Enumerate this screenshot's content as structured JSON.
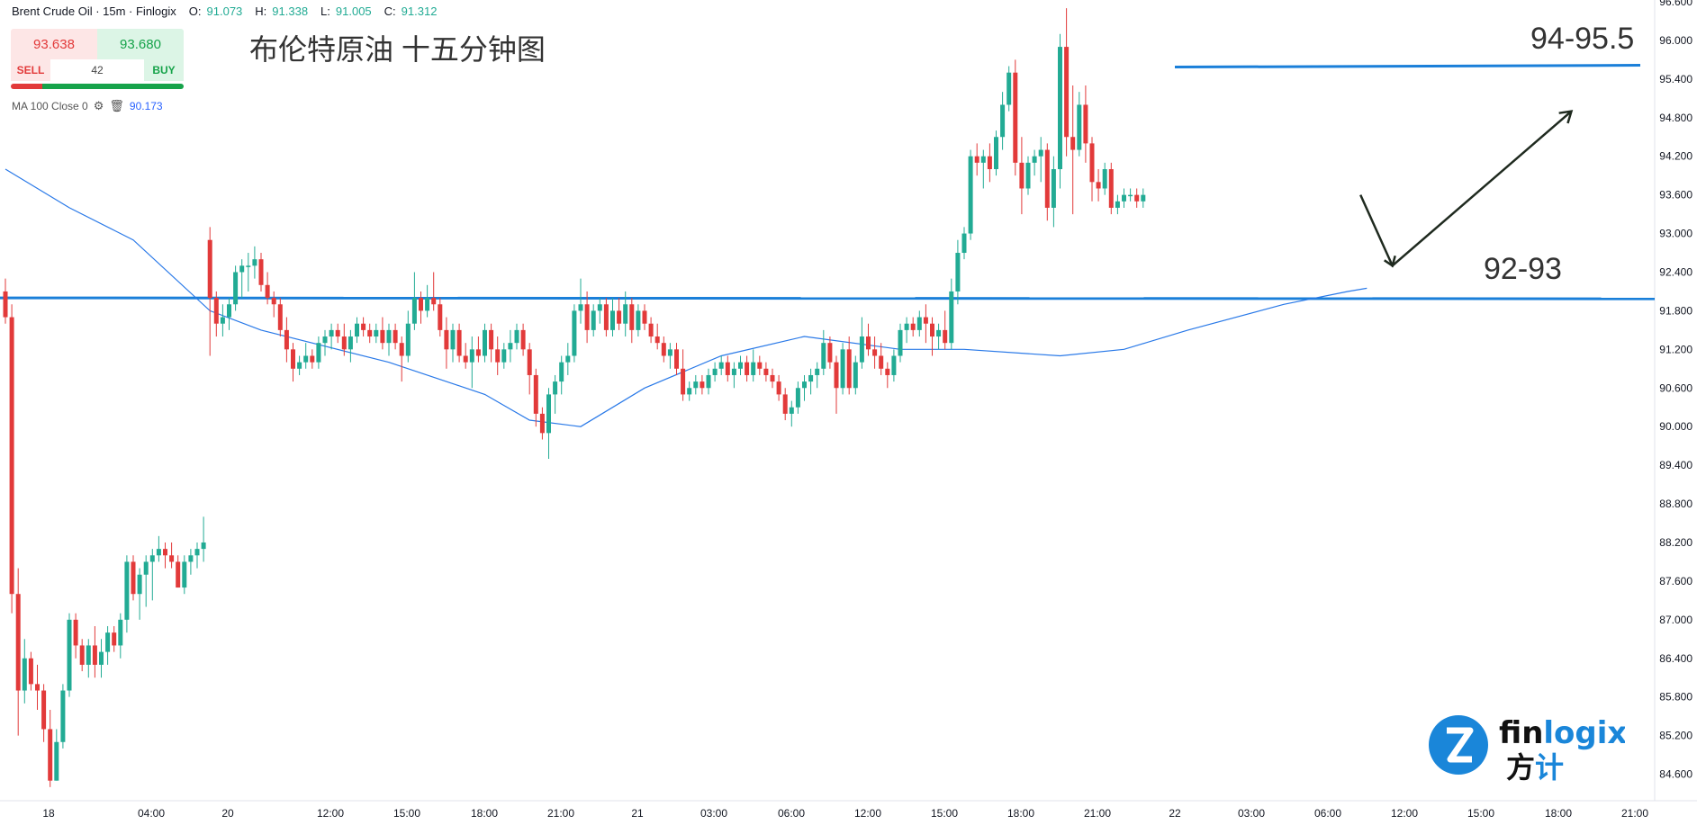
{
  "header": {
    "symbol": "Brent Crude Oil · 15m · Finlogix",
    "o_label": "O:",
    "o_value": "91.073",
    "h_label": "H:",
    "h_value": "91.338",
    "l_label": "L:",
    "l_value": "91.005",
    "c_label": "C:",
    "c_value": "91.312"
  },
  "trade_panel": {
    "sell_price": "93.638",
    "buy_price": "93.680",
    "sell_label": "SELL",
    "buy_label": "BUY",
    "spread": "42"
  },
  "indicator": {
    "label": "MA 100 Close 0",
    "value": "90.173",
    "icons": [
      "gear-icon",
      "trash-icon"
    ]
  },
  "annotation_title": "布伦特原油 十五分钟图",
  "zones": {
    "upper_label": "94-95.5",
    "lower_label": "92-93"
  },
  "logo": {
    "brand": "finlogix",
    "brand_cn": "方计",
    "brand_accent": "#1a86d9"
  },
  "colors": {
    "up": "#22ab94",
    "down": "#e23a3a",
    "ma": "#2979e8",
    "level": "#1a7fd9"
  },
  "chart_data": {
    "type": "candlestick",
    "y_ticks": [
      "96.600",
      "96.000",
      "95.400",
      "94.800",
      "94.200",
      "93.600",
      "93.000",
      "92.400",
      "91.800",
      "91.200",
      "90.600",
      "90.000",
      "89.400",
      "88.800",
      "88.200",
      "87.600",
      "87.000",
      "86.400",
      "85.800",
      "85.200",
      "84.600"
    ],
    "ylim": [
      84.3,
      96.6
    ],
    "x_ticks": [
      "18",
      "04:00",
      "20",
      "12:00",
      "15:00",
      "18:00",
      "21:00",
      "21",
      "03:00",
      "06:00",
      "12:00",
      "15:00",
      "18:00",
      "21:00",
      "22",
      "03:00",
      "06:00",
      "12:00",
      "15:00",
      "18:00",
      "21:00"
    ],
    "horizontal_levels": [
      95.6,
      92.0
    ],
    "ohlc": [
      [
        92.1,
        92.3,
        91.6,
        91.7
      ],
      [
        91.7,
        91.9,
        87.1,
        87.4
      ],
      [
        87.4,
        87.8,
        85.2,
        85.9
      ],
      [
        85.9,
        86.7,
        85.7,
        86.4
      ],
      [
        86.4,
        86.5,
        85.9,
        86.0
      ],
      [
        86.0,
        86.3,
        85.6,
        85.9
      ],
      [
        85.9,
        86.0,
        85.1,
        85.3
      ],
      [
        85.3,
        85.6,
        84.4,
        84.5
      ],
      [
        84.5,
        85.3,
        84.5,
        85.1
      ],
      [
        85.1,
        86.0,
        85.0,
        85.9
      ],
      [
        85.9,
        87.1,
        85.8,
        87.0
      ],
      [
        87.0,
        87.1,
        86.4,
        86.6
      ],
      [
        86.6,
        86.7,
        86.2,
        86.3
      ],
      [
        86.3,
        86.7,
        86.1,
        86.6
      ],
      [
        86.6,
        86.9,
        86.1,
        86.3
      ],
      [
        86.3,
        86.7,
        86.1,
        86.5
      ],
      [
        86.5,
        86.9,
        86.3,
        86.8
      ],
      [
        86.8,
        86.9,
        86.5,
        86.6
      ],
      [
        86.6,
        87.1,
        86.4,
        87.0
      ],
      [
        87.0,
        88.0,
        86.8,
        87.9
      ],
      [
        87.9,
        88.0,
        87.3,
        87.4
      ],
      [
        87.4,
        87.8,
        87.0,
        87.7
      ],
      [
        87.7,
        88.0,
        87.2,
        87.9
      ],
      [
        87.9,
        88.1,
        87.3,
        88.0
      ],
      [
        88.0,
        88.3,
        87.9,
        88.1
      ],
      [
        88.1,
        88.2,
        87.8,
        88.0
      ],
      [
        88.0,
        88.2,
        87.8,
        87.9
      ],
      [
        87.9,
        88.0,
        87.5,
        87.5
      ],
      [
        87.5,
        88.0,
        87.4,
        87.9
      ],
      [
        87.9,
        88.1,
        87.7,
        88.0
      ],
      [
        88.0,
        88.2,
        87.8,
        88.1
      ],
      [
        88.1,
        88.6,
        87.9,
        88.2
      ],
      [
        92.9,
        93.1,
        91.1,
        92.0
      ],
      [
        92.0,
        92.1,
        91.4,
        91.6
      ],
      [
        91.6,
        91.9,
        91.4,
        91.7
      ],
      [
        91.7,
        92.0,
        91.5,
        91.9
      ],
      [
        91.9,
        92.5,
        91.8,
        92.4
      ],
      [
        92.4,
        92.6,
        92.0,
        92.5
      ],
      [
        92.5,
        92.7,
        92.1,
        92.5
      ],
      [
        92.5,
        92.8,
        92.3,
        92.6
      ],
      [
        92.6,
        92.7,
        92.1,
        92.2
      ],
      [
        92.2,
        92.4,
        91.9,
        92.0
      ],
      [
        92.0,
        92.1,
        91.7,
        91.9
      ],
      [
        91.9,
        92.0,
        91.4,
        91.5
      ],
      [
        91.5,
        91.7,
        91.0,
        91.2
      ],
      [
        91.2,
        91.3,
        90.7,
        90.9
      ],
      [
        90.9,
        91.1,
        90.8,
        91.0
      ],
      [
        91.0,
        91.3,
        90.9,
        91.1
      ],
      [
        91.1,
        91.2,
        90.9,
        91.0
      ],
      [
        91.0,
        91.4,
        90.9,
        91.3
      ],
      [
        91.3,
        91.5,
        91.1,
        91.4
      ],
      [
        91.4,
        91.6,
        91.2,
        91.5
      ],
      [
        91.5,
        91.6,
        91.3,
        91.4
      ],
      [
        91.4,
        91.6,
        91.1,
        91.2
      ],
      [
        91.2,
        91.5,
        91.0,
        91.4
      ],
      [
        91.4,
        91.7,
        91.3,
        91.6
      ],
      [
        91.6,
        91.7,
        91.4,
        91.5
      ],
      [
        91.5,
        91.6,
        91.3,
        91.4
      ],
      [
        91.4,
        91.6,
        91.3,
        91.5
      ],
      [
        91.5,
        91.7,
        91.2,
        91.3
      ],
      [
        91.3,
        91.6,
        91.1,
        91.5
      ],
      [
        91.5,
        91.6,
        91.2,
        91.3
      ],
      [
        91.3,
        91.4,
        90.7,
        91.1
      ],
      [
        91.1,
        91.8,
        91.0,
        91.6
      ],
      [
        91.6,
        92.4,
        91.5,
        92.0
      ],
      [
        92.0,
        92.1,
        91.6,
        91.8
      ],
      [
        91.8,
        92.2,
        91.7,
        92.0
      ],
      [
        92.0,
        92.4,
        91.8,
        91.9
      ],
      [
        91.9,
        92.0,
        91.4,
        91.5
      ],
      [
        91.5,
        91.7,
        90.9,
        91.2
      ],
      [
        91.2,
        91.6,
        91.0,
        91.5
      ],
      [
        91.5,
        91.6,
        91.0,
        91.1
      ],
      [
        91.1,
        91.3,
        90.9,
        91.0
      ],
      [
        91.0,
        91.4,
        90.6,
        91.2
      ],
      [
        91.2,
        91.4,
        91.0,
        91.1
      ],
      [
        91.1,
        91.6,
        91.0,
        91.5
      ],
      [
        91.5,
        91.6,
        91.0,
        91.2
      ],
      [
        91.2,
        91.4,
        90.8,
        91.0
      ],
      [
        91.0,
        91.3,
        90.9,
        91.2
      ],
      [
        91.2,
        91.5,
        91.0,
        91.3
      ],
      [
        91.3,
        91.6,
        91.2,
        91.5
      ],
      [
        91.5,
        91.6,
        91.1,
        91.2
      ],
      [
        91.2,
        91.3,
        90.5,
        90.8
      ],
      [
        90.8,
        90.9,
        90.0,
        90.2
      ],
      [
        90.2,
        90.3,
        89.8,
        89.9
      ],
      [
        89.9,
        90.6,
        89.5,
        90.5
      ],
      [
        90.5,
        90.8,
        90.2,
        90.7
      ],
      [
        90.7,
        91.1,
        90.5,
        91.0
      ],
      [
        91.0,
        91.3,
        90.8,
        91.1
      ],
      [
        91.1,
        91.9,
        91.0,
        91.8
      ],
      [
        91.8,
        92.3,
        91.6,
        91.9
      ],
      [
        91.9,
        92.1,
        91.3,
        91.5
      ],
      [
        91.5,
        91.9,
        91.4,
        91.8
      ],
      [
        91.8,
        92.0,
        91.6,
        91.9
      ],
      [
        91.9,
        92.0,
        91.4,
        91.5
      ],
      [
        91.5,
        92.0,
        91.4,
        91.8
      ],
      [
        91.8,
        92.0,
        91.5,
        91.6
      ],
      [
        91.6,
        92.1,
        91.4,
        91.9
      ],
      [
        91.9,
        92.0,
        91.3,
        91.5
      ],
      [
        91.5,
        91.9,
        91.4,
        91.8
      ],
      [
        91.8,
        91.9,
        91.5,
        91.6
      ],
      [
        91.6,
        91.7,
        91.3,
        91.4
      ],
      [
        91.4,
        91.6,
        91.2,
        91.3
      ],
      [
        91.3,
        91.4,
        91.0,
        91.1
      ],
      [
        91.1,
        91.3,
        90.9,
        91.2
      ],
      [
        91.2,
        91.3,
        90.8,
        90.9
      ],
      [
        90.9,
        91.2,
        90.4,
        90.5
      ],
      [
        90.5,
        90.7,
        90.4,
        90.6
      ],
      [
        90.6,
        90.8,
        90.5,
        90.7
      ],
      [
        90.7,
        90.8,
        90.5,
        90.6
      ],
      [
        90.6,
        90.9,
        90.5,
        90.8
      ],
      [
        90.8,
        91.0,
        90.7,
        90.9
      ],
      [
        90.9,
        91.1,
        90.8,
        91.0
      ],
      [
        91.0,
        91.1,
        90.7,
        90.8
      ],
      [
        90.8,
        91.0,
        90.6,
        90.9
      ],
      [
        90.9,
        91.1,
        90.8,
        91.0
      ],
      [
        91.0,
        91.1,
        90.7,
        90.8
      ],
      [
        90.8,
        91.2,
        90.7,
        91.0
      ],
      [
        91.0,
        91.1,
        90.8,
        90.9
      ],
      [
        90.9,
        91.0,
        90.7,
        90.8
      ],
      [
        90.8,
        90.9,
        90.6,
        90.7
      ],
      [
        90.7,
        90.8,
        90.4,
        90.5
      ],
      [
        90.5,
        90.6,
        90.1,
        90.2
      ],
      [
        90.2,
        90.4,
        90.0,
        90.3
      ],
      [
        90.3,
        90.7,
        90.2,
        90.6
      ],
      [
        90.6,
        90.8,
        90.4,
        90.7
      ],
      [
        90.7,
        90.9,
        90.5,
        90.8
      ],
      [
        90.8,
        91.0,
        90.6,
        90.9
      ],
      [
        90.9,
        91.5,
        90.8,
        91.3
      ],
      [
        91.3,
        91.4,
        90.9,
        91.0
      ],
      [
        91.0,
        91.1,
        90.2,
        90.6
      ],
      [
        90.6,
        91.3,
        90.5,
        91.2
      ],
      [
        91.2,
        91.4,
        90.5,
        90.6
      ],
      [
        90.6,
        91.1,
        90.5,
        91.0
      ],
      [
        91.0,
        91.7,
        90.9,
        91.4
      ],
      [
        91.4,
        91.6,
        91.1,
        91.2
      ],
      [
        91.2,
        91.4,
        90.9,
        91.1
      ],
      [
        91.1,
        91.3,
        90.8,
        90.9
      ],
      [
        90.9,
        91.0,
        90.6,
        90.8
      ],
      [
        90.8,
        91.2,
        90.7,
        91.1
      ],
      [
        91.1,
        91.6,
        91.0,
        91.5
      ],
      [
        91.5,
        91.7,
        91.3,
        91.6
      ],
      [
        91.6,
        91.7,
        91.4,
        91.5
      ],
      [
        91.5,
        91.8,
        91.4,
        91.7
      ],
      [
        91.7,
        91.9,
        91.3,
        91.6
      ],
      [
        91.6,
        91.7,
        91.1,
        91.4
      ],
      [
        91.4,
        91.6,
        91.2,
        91.5
      ],
      [
        91.5,
        91.8,
        91.2,
        91.3
      ],
      [
        91.3,
        92.3,
        91.2,
        92.1
      ],
      [
        92.1,
        92.9,
        91.9,
        92.7
      ],
      [
        92.7,
        93.1,
        92.6,
        93.0
      ],
      [
        93.0,
        94.3,
        92.9,
        94.2
      ],
      [
        94.2,
        94.4,
        93.9,
        94.1
      ],
      [
        94.1,
        94.3,
        93.7,
        94.2
      ],
      [
        94.2,
        94.4,
        93.8,
        94.0
      ],
      [
        94.0,
        94.6,
        93.9,
        94.5
      ],
      [
        94.5,
        95.2,
        94.3,
        95.0
      ],
      [
        95.0,
        95.6,
        94.9,
        95.5
      ],
      [
        95.5,
        95.7,
        93.9,
        94.1
      ],
      [
        94.1,
        94.5,
        93.3,
        93.7
      ],
      [
        93.7,
        94.2,
        93.6,
        94.1
      ],
      [
        94.1,
        94.3,
        93.9,
        94.2
      ],
      [
        94.2,
        94.5,
        93.8,
        94.3
      ],
      [
        94.3,
        94.4,
        93.2,
        93.4
      ],
      [
        93.4,
        94.2,
        93.1,
        94.0
      ],
      [
        94.0,
        96.1,
        93.7,
        95.9
      ],
      [
        95.9,
        96.5,
        94.2,
        94.5
      ],
      [
        94.5,
        95.3,
        93.3,
        94.3
      ],
      [
        94.3,
        95.2,
        94.2,
        95.0
      ],
      [
        95.0,
        95.3,
        94.1,
        94.4
      ],
      [
        94.4,
        94.5,
        93.5,
        93.8
      ],
      [
        93.8,
        94.0,
        93.5,
        93.7
      ],
      [
        93.7,
        94.1,
        93.6,
        94.0
      ],
      [
        94.0,
        94.1,
        93.3,
        93.4
      ],
      [
        93.4,
        93.6,
        93.3,
        93.5
      ],
      [
        93.5,
        93.7,
        93.4,
        93.6
      ],
      [
        93.6,
        93.7,
        93.5,
        93.6
      ],
      [
        93.6,
        93.7,
        93.4,
        93.5
      ],
      [
        93.5,
        93.7,
        93.4,
        93.6
      ]
    ],
    "ma100": [
      [
        0,
        94.0
      ],
      [
        10,
        93.4
      ],
      [
        20,
        92.9
      ],
      [
        32,
        91.8
      ],
      [
        40,
        91.5
      ],
      [
        60,
        91.0
      ],
      [
        75,
        90.5
      ],
      [
        82,
        90.1
      ],
      [
        90,
        90.0
      ],
      [
        100,
        90.6
      ],
      [
        112,
        91.1
      ],
      [
        125,
        91.4
      ],
      [
        140,
        91.2
      ],
      [
        150,
        91.2
      ],
      [
        165,
        91.1
      ],
      [
        175,
        91.2
      ],
      [
        185,
        91.5
      ],
      [
        200,
        91.9
      ],
      [
        210,
        92.1
      ],
      [
        213,
        92.15
      ]
    ],
    "forecast_path": [
      [
        93.6,
        212
      ],
      [
        92.5,
        217
      ],
      [
        94.9,
        245
      ]
    ]
  }
}
